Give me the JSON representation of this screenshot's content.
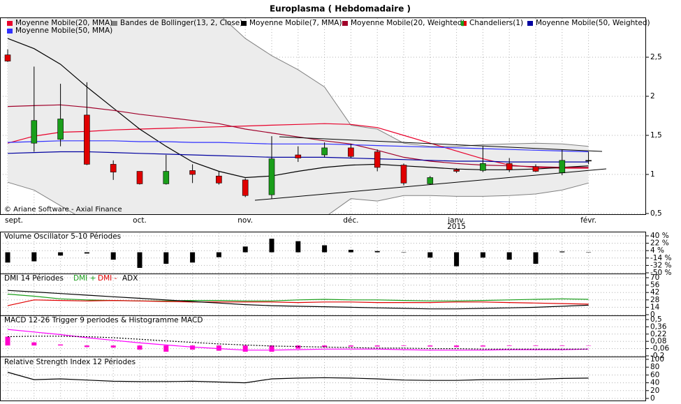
{
  "chart_data": [
    {
      "type": "candlestick",
      "title": "Europlasma  ( Hebdomadaire )",
      "annotation": "© Ariane Software - Axial Finance",
      "categories": [
        "sept.",
        null,
        null,
        null,
        null,
        "oct.",
        null,
        null,
        null,
        "nov.",
        null,
        null,
        null,
        "déc.",
        null,
        null,
        null,
        "janv.",
        null,
        null,
        null,
        null,
        "févr."
      ],
      "year_label": "2015",
      "ylim": [
        0.5,
        3.0
      ],
      "yticks": [
        {
          "value": 0.5,
          "label": "0,5"
        },
        1,
        {
          "value": 1.5,
          "label": "1,5"
        },
        2,
        {
          "value": 2.5,
          "label": "2,5"
        }
      ],
      "grid": true,
      "candles": {
        "name": "Chandeliers(1)",
        "up_color": "#1a9e1a",
        "down_color": "#e00000",
        "open": [
          2.53,
          1.4,
          1.45,
          1.76,
          1.13,
          1.04,
          0.88,
          1.05,
          0.98,
          0.93,
          0.74,
          1.25,
          1.25,
          1.34,
          1.29,
          1.12,
          0.88,
          1.06,
          1.05,
          1.14,
          1.1,
          1.02,
          1.18
        ],
        "high": [
          2.6,
          2.38,
          2.16,
          2.18,
          1.18,
          1.04,
          1.25,
          1.13,
          1.04,
          0.95,
          1.49,
          1.36,
          1.41,
          1.39,
          1.32,
          1.14,
          0.98,
          1.08,
          1.36,
          1.21,
          1.13,
          1.32,
          1.29
        ],
        "low": [
          2.44,
          1.29,
          1.36,
          1.12,
          0.93,
          0.87,
          0.87,
          0.89,
          0.87,
          0.71,
          0.69,
          1.16,
          1.22,
          1.21,
          1.04,
          0.86,
          0.87,
          1.02,
          1.03,
          1.03,
          1.03,
          0.99,
          1.13
        ],
        "close": [
          2.45,
          1.69,
          1.71,
          1.13,
          1.03,
          0.88,
          1.04,
          1.0,
          0.89,
          0.73,
          1.2,
          1.21,
          1.34,
          1.23,
          1.09,
          0.89,
          0.96,
          1.04,
          1.14,
          1.06,
          1.04,
          1.18,
          1.18
        ]
      },
      "bands": {
        "name": "Bandes de Bollinger(13, 2, Close)",
        "color": "#808080",
        "fill": "#ececec",
        "upper": [
          3.3,
          3.4,
          3.5,
          3.6,
          3.6,
          3.5,
          3.4,
          3.3,
          3.05,
          2.74,
          2.52,
          2.34,
          2.12,
          1.63,
          1.58,
          1.4,
          1.36,
          1.36,
          1.38,
          1.39,
          1.4,
          1.39,
          1.36
        ],
        "lower": [
          0.9,
          0.8,
          0.6,
          0.4,
          0.3,
          0.3,
          0.3,
          0.35,
          0.4,
          0.4,
          0.45,
          0.4,
          0.45,
          0.69,
          0.66,
          0.73,
          0.73,
          0.72,
          0.72,
          0.73,
          0.75,
          0.8,
          0.89
        ]
      },
      "series": [
        {
          "name": "Moyenne Mobile(20, MMA)",
          "color": "#e8002a",
          "values": [
            1.4,
            1.49,
            1.54,
            1.55,
            1.57,
            1.58,
            1.59,
            1.6,
            1.61,
            1.62,
            1.63,
            1.64,
            1.65,
            1.64,
            1.6,
            1.5,
            1.4,
            1.3,
            1.2,
            1.12,
            1.09,
            1.08,
            1.08
          ]
        },
        {
          "name": "Moyenne Mobile(7, MMA)",
          "color": "#000000",
          "values": [
            2.74,
            2.61,
            2.41,
            2.12,
            1.85,
            1.58,
            1.36,
            1.16,
            1.04,
            0.96,
            0.98,
            1.04,
            1.09,
            1.12,
            1.13,
            1.11,
            1.09,
            1.07,
            1.06,
            1.06,
            1.07,
            1.09,
            1.11
          ]
        },
        {
          "name": "Moyenne Mobile(20, Weighted)",
          "color": "#a0002a",
          "values": [
            1.87,
            1.88,
            1.89,
            1.86,
            1.82,
            1.77,
            1.73,
            1.69,
            1.65,
            1.58,
            1.53,
            1.48,
            1.43,
            1.39,
            1.31,
            1.22,
            1.17,
            1.14,
            1.12,
            1.11,
            1.1,
            1.09,
            1.09
          ]
        },
        {
          "name": "Moyenne Mobile(50, Weighted)",
          "color": "#0000a0",
          "values": [
            1.27,
            1.28,
            1.29,
            1.29,
            1.28,
            1.27,
            1.26,
            1.25,
            1.24,
            1.23,
            1.22,
            1.22,
            1.22,
            1.21,
            1.2,
            1.19,
            1.18,
            1.17,
            1.17,
            1.16,
            1.16,
            1.16,
            1.16
          ]
        },
        {
          "name": "Moyenne Mobile(50, MMA)",
          "color": "#3030ff",
          "values": [
            1.41,
            1.42,
            1.43,
            1.43,
            1.43,
            1.42,
            1.42,
            1.41,
            1.41,
            1.4,
            1.39,
            1.39,
            1.39,
            1.38,
            1.37,
            1.36,
            1.35,
            1.34,
            1.33,
            1.32,
            1.31,
            1.3,
            1.29
          ]
        }
      ]
    },
    {
      "type": "bar",
      "title": "Volume Oscillator 5-10 Périodes",
      "color": "#000000",
      "ylim": [
        -50,
        40
      ],
      "yticks": [
        {
          "value": 40,
          "label": "40 %"
        },
        {
          "value": 22,
          "label": "22 %"
        },
        {
          "value": 4,
          "label": "4 %"
        },
        {
          "value": -14,
          "label": "-14 %"
        },
        {
          "value": -32,
          "label": "-32 %"
        },
        {
          "value": -50,
          "label": "-50 %"
        }
      ],
      "values": [
        -25,
        -22,
        -8,
        -3,
        -18,
        -38,
        -28,
        -25,
        -12,
        14,
        33,
        27,
        17,
        6,
        3,
        0,
        -13,
        -34,
        -13,
        -18,
        -28,
        2,
        0
      ]
    },
    {
      "type": "line",
      "title": "DMI 14 Périodes",
      "ylim": [
        0,
        70
      ],
      "yticks": [
        70,
        56,
        42,
        28,
        14,
        0
      ],
      "series": [
        {
          "name": "DMI +",
          "color": "#1a9e1a",
          "values": [
            39,
            35,
            30,
            28,
            27,
            26,
            26,
            27,
            27,
            26,
            26,
            28,
            29,
            28,
            28,
            27,
            26,
            26,
            27,
            28,
            29,
            30,
            29
          ]
        },
        {
          "name": "DMI -",
          "color": "#e00000",
          "values": [
            17,
            28,
            27,
            26,
            27,
            26,
            25,
            24,
            24,
            24,
            24,
            23,
            24,
            24,
            23,
            23,
            23,
            24,
            24,
            23,
            22,
            21,
            20
          ]
        },
        {
          "name": "ADX",
          "color": "#000000",
          "values": [
            46,
            43,
            40,
            37,
            34,
            31,
            28,
            25,
            22,
            19,
            17,
            16,
            15,
            14,
            13,
            12,
            11,
            11,
            12,
            13,
            14,
            16,
            18
          ]
        }
      ]
    },
    {
      "type": "combo",
      "title": "MACD 12-26  Trigger 9 periodes & Histogramme MACD",
      "ylim": [
        -0.2,
        0.5
      ],
      "yticks": [
        {
          "value": 0.5,
          "label": "0,5"
        },
        {
          "value": 0.36,
          "label": "0,36"
        },
        {
          "value": 0.22,
          "label": "0,22"
        },
        {
          "value": 0.08,
          "label": "0,08"
        },
        {
          "value": -0.06,
          "label": "-0,06"
        },
        {
          "value": -0.2,
          "label": "-0,2"
        }
      ],
      "series": [
        {
          "type": "bar",
          "color": "#ff00cc",
          "values": [
            0.17,
            0.06,
            0.02,
            -0.03,
            -0.04,
            -0.08,
            -0.12,
            -0.08,
            -0.1,
            -0.12,
            -0.12,
            -0.06,
            -0.03,
            -0.02,
            -0.02,
            -0.01,
            -0.02,
            -0.03,
            -0.02,
            -0.01,
            -0.01,
            -0.01,
            0
          ]
        },
        {
          "type": "line",
          "color": "#ff00ff",
          "values": [
            0.31,
            0.26,
            0.21,
            0.15,
            0.1,
            0.05,
            0.01,
            -0.03,
            -0.06,
            -0.09,
            -0.09,
            -0.08,
            -0.07,
            -0.07,
            -0.07,
            -0.08,
            -0.09,
            -0.09,
            -0.09,
            -0.08,
            -0.08,
            -0.08,
            -0.07
          ]
        },
        {
          "type": "line",
          "style": "dotted",
          "color": "#000000",
          "values": [
            0.17,
            0.18,
            0.18,
            0.17,
            0.15,
            0.12,
            0.09,
            0.06,
            0.03,
            0.01,
            -0.01,
            -0.02,
            -0.03,
            -0.04,
            -0.05,
            -0.05,
            -0.06,
            -0.06,
            -0.07,
            -0.07,
            -0.07,
            -0.07,
            -0.07
          ]
        }
      ]
    },
    {
      "type": "line",
      "title": "Relative Strength Index 12 Périodes",
      "ylim": [
        0,
        100
      ],
      "yticks": [
        100,
        80,
        60,
        40,
        20,
        0
      ],
      "series": [
        {
          "color": "#000000",
          "values": [
            67,
            48,
            50,
            47,
            44,
            43,
            43,
            44,
            42,
            40,
            50,
            52,
            53,
            52,
            50,
            47,
            46,
            46,
            48,
            48,
            49,
            51,
            52
          ]
        }
      ]
    }
  ]
}
